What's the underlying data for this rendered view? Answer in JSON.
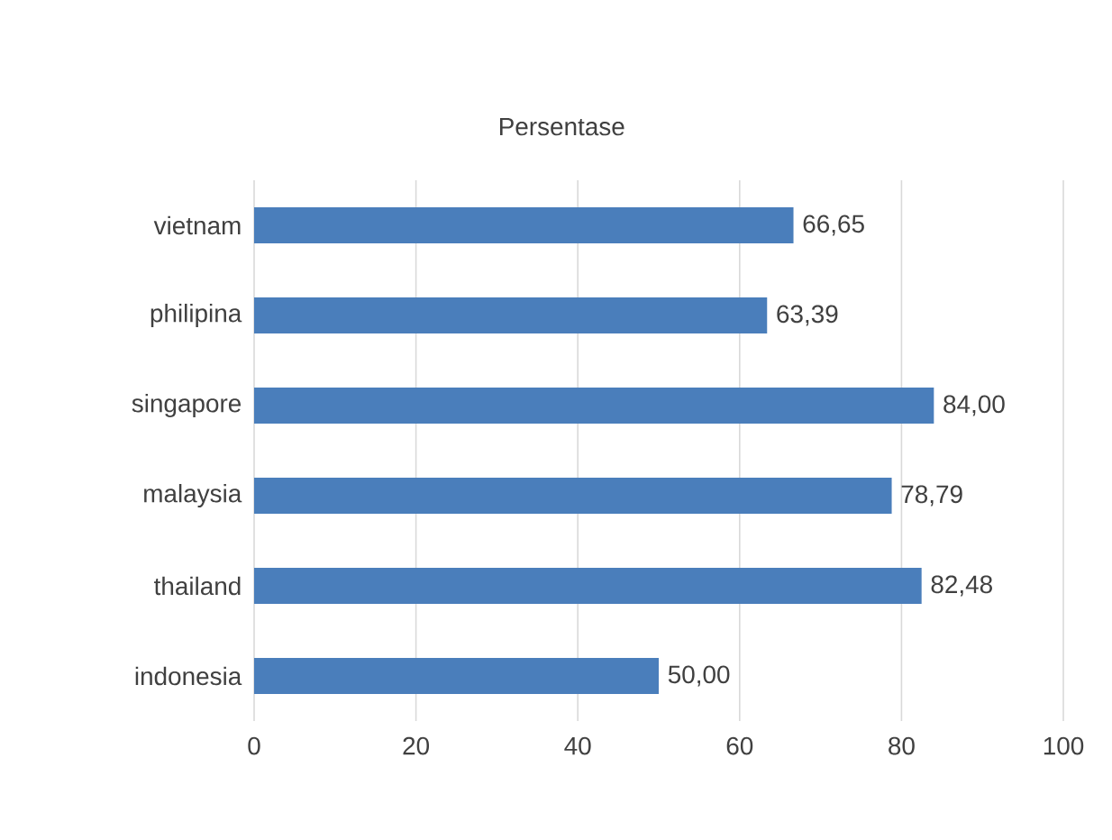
{
  "chart_data": {
    "type": "bar",
    "orientation": "horizontal",
    "title": "Persentase",
    "categories": [
      "vietnam",
      "philipina",
      "singapore",
      "malaysia",
      "thailand",
      "indonesia"
    ],
    "values": [
      66.65,
      63.39,
      84.0,
      78.79,
      82.48,
      50.0
    ],
    "value_labels": [
      "66,65",
      "63,39",
      "84,00",
      "78,79",
      "82,48",
      "50,00"
    ],
    "color": "#4a7ebb",
    "xlim": [
      0,
      100
    ],
    "xticks": [
      0,
      20,
      40,
      60,
      80,
      100
    ],
    "grid": "x"
  }
}
